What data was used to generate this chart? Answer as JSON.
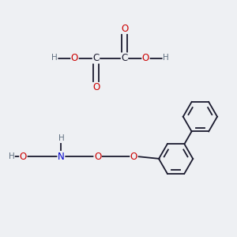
{
  "bg_color": "#eef0f3",
  "bond_color": "#1a1a2e",
  "atom_colors": {
    "O": "#cc0000",
    "N": "#0000cc",
    "H": "#607080",
    "C": "#1a1a2e"
  },
  "bond_lw": 1.3,
  "font_size": 8.5,
  "font_size_h": 7.5,
  "ring_r": 0.072
}
